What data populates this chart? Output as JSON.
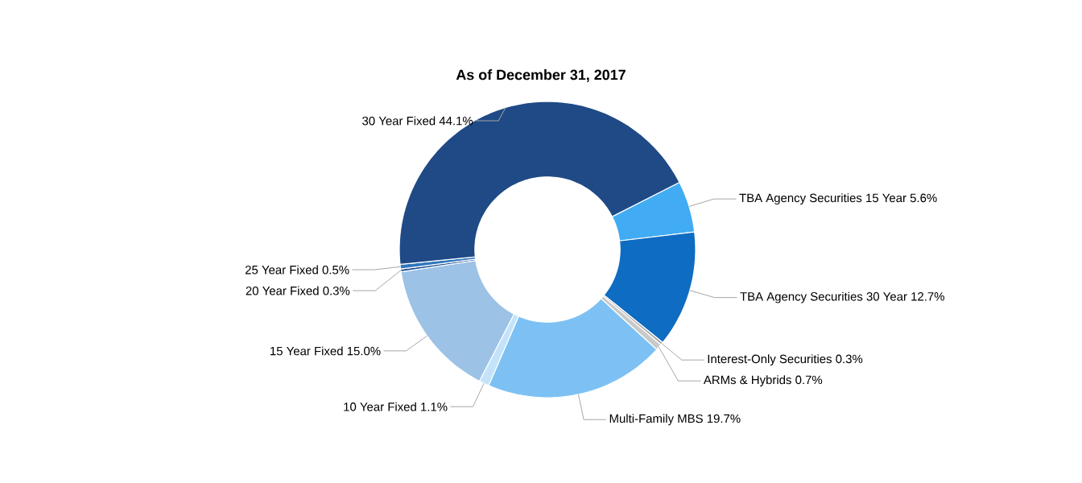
{
  "chart_data": {
    "type": "donut",
    "title": "As of December 31, 2017",
    "categories": [
      "TBA Agency Securities 15 Year",
      "TBA Agency Securities 30 Year",
      "Interest-Only Securities",
      "ARMs & Hybrids",
      "Multi-Family MBS",
      "10 Year Fixed",
      "15 Year Fixed",
      "20 Year Fixed",
      "25 Year Fixed",
      "30 Year Fixed"
    ],
    "values": [
      5.6,
      12.7,
      0.3,
      0.7,
      19.7,
      1.1,
      15.0,
      0.3,
      0.5,
      44.1
    ],
    "value_labels": [
      "5.6%",
      "12.7%",
      "0.3%",
      "0.7%",
      "19.7%",
      "1.1%",
      "15.0%",
      "0.3%",
      "0.5%",
      "44.1%"
    ],
    "colors": [
      "#41acf3",
      "#0e6cc2",
      "#a6a6a6",
      "#c9c9c9",
      "#7dc1f4",
      "#c3e3fa",
      "#9cc2e6",
      "#1c4f8f",
      "#2f77bb",
      "#1f4a86"
    ]
  }
}
